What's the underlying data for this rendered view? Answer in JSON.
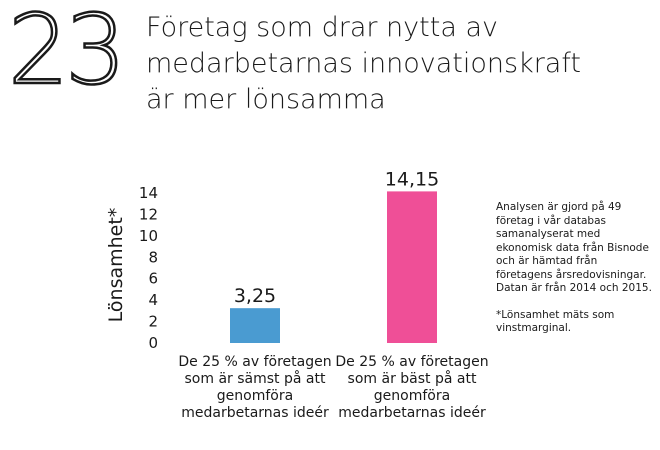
{
  "header": {
    "number": "23",
    "title_lines": [
      "Företag som drar nytta av",
      "medarbetarnas innovationskraft",
      "är mer lönsamma"
    ]
  },
  "chart_data": {
    "type": "bar",
    "categories": [
      [
        "De 25 % av företagen",
        "som är sämst på att",
        "genomföra",
        "medarbetarnas ideér"
      ],
      [
        "De 25 % av företagen",
        "som är bäst på att",
        "genomföra",
        "medarbetarnas ideér"
      ]
    ],
    "values": [
      3.25,
      14.15
    ],
    "value_labels": [
      "3,25",
      "14,15"
    ],
    "colors": [
      "#4a9bd1",
      "#ef4f97"
    ],
    "ylabel": "Lönsamhet*",
    "ylim": [
      0,
      14
    ],
    "yticks": [
      "0",
      "2",
      "4",
      "6",
      "8",
      "10",
      "12",
      "14"
    ],
    "grid": false
  },
  "notes": {
    "method": "Analysen är gjord på 49 företag i vår databas samanalyserat med ekonomisk data från Bisnode och är hämtad från företagens årsredovisningar. Datan är från 2014 och 2015.",
    "footnote": "*Lönsamhet mäts som vinstmarginal."
  }
}
